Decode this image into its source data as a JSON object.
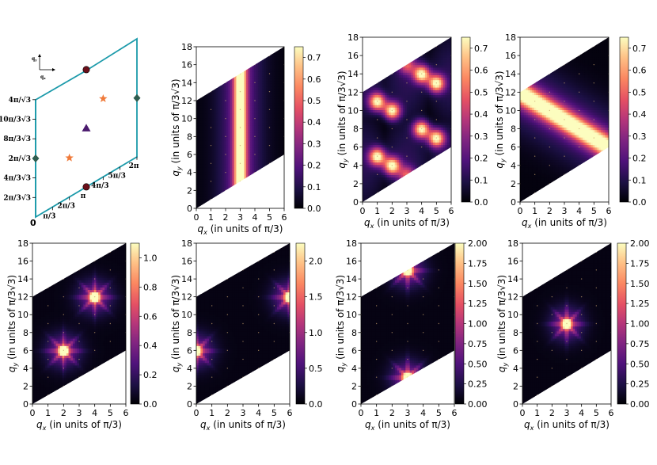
{
  "figure": {
    "axis_labels": {
      "x_text": "q",
      "x_sub": "x",
      "x_rest": " (in units of π/3)",
      "y_text": "q",
      "y_sub": "y",
      "y_rest": " (in units of π/3√3)"
    },
    "colormap": "magma",
    "colors": {
      "bz_outline": "#1b9aaa",
      "marker_circle": "#6b0f1a",
      "marker_star": "#f07a3a",
      "marker_triangle": "#4b1a6e",
      "marker_diamond": "#2f5d50"
    }
  },
  "bz_panel": {
    "origin_label": "0",
    "x_ticks": [
      "π/3",
      "2π/3",
      "π",
      "4π/3",
      "5π/3",
      "2π"
    ],
    "y_ticks": [
      "2π/3√3",
      "4π/3√3",
      "2π/√3",
      "8π/3√3",
      "10π/3√3",
      "4π/√3"
    ],
    "axis_small": {
      "qy": "q",
      "qy_sub": "y",
      "qx": "q",
      "qx_sub": "x"
    },
    "markers": [
      {
        "shape": "circle",
        "qx": 3,
        "qy": 15
      },
      {
        "shape": "circle",
        "qx": 3,
        "qy": 3
      },
      {
        "shape": "star",
        "qx": 4,
        "qy": 12
      },
      {
        "shape": "star",
        "qx": 2,
        "qy": 6
      },
      {
        "shape": "triangle",
        "qx": 3,
        "qy": 9
      },
      {
        "shape": "diamond",
        "qx": 6,
        "qy": 12
      },
      {
        "shape": "diamond",
        "qx": 0,
        "qy": 6
      }
    ]
  },
  "chart_data": [
    {
      "type": "heatmap",
      "panel": "top-1",
      "pattern": "vertical-band",
      "center": [
        3,
        9
      ],
      "xlim": [
        0,
        6
      ],
      "ylim": [
        0,
        18
      ],
      "x_ticks": [
        "0",
        "1",
        "2",
        "3",
        "4",
        "5",
        "6"
      ],
      "y_ticks": [
        "0",
        "2",
        "4",
        "6",
        "8",
        "10",
        "12",
        "14",
        "16",
        "18"
      ],
      "colorbar": {
        "min": 0,
        "max": 0.75,
        "ticks": [
          "0.0",
          "0.1",
          "0.2",
          "0.3",
          "0.4",
          "0.5",
          "0.6",
          "0.7"
        ]
      }
    },
    {
      "type": "heatmap",
      "panel": "top-2",
      "pattern": "lattice-peaks",
      "center": [
        3,
        9
      ],
      "xlim": [
        0,
        6
      ],
      "ylim": [
        0,
        18
      ],
      "x_ticks": [
        "0",
        "1",
        "2",
        "3",
        "4",
        "5",
        "6"
      ],
      "y_ticks": [
        "0",
        "2",
        "4",
        "6",
        "8",
        "10",
        "12",
        "14",
        "16",
        "18"
      ],
      "colorbar": {
        "min": 0,
        "max": 0.75,
        "ticks": [
          "0.0",
          "0.1",
          "0.2",
          "0.3",
          "0.4",
          "0.5",
          "0.6",
          "0.7"
        ]
      }
    },
    {
      "type": "heatmap",
      "panel": "top-3",
      "pattern": "diagonal-band",
      "center": [
        3,
        9
      ],
      "xlim": [
        0,
        6
      ],
      "ylim": [
        0,
        18
      ],
      "x_ticks": [
        "0",
        "1",
        "2",
        "3",
        "4",
        "5",
        "6"
      ],
      "y_ticks": [
        "0",
        "2",
        "4",
        "6",
        "8",
        "10",
        "12",
        "14",
        "16",
        "18"
      ],
      "colorbar": {
        "min": 0,
        "max": 0.75,
        "ticks": [
          "0.0",
          "0.1",
          "0.2",
          "0.3",
          "0.4",
          "0.5",
          "0.6",
          "0.7"
        ]
      }
    },
    {
      "type": "heatmap",
      "panel": "top-4",
      "pattern": "crossing-band",
      "center": [
        3,
        9
      ],
      "xlim": [
        0,
        6
      ],
      "ylim": [
        0,
        18
      ],
      "x_ticks": [
        "0",
        "1",
        "2",
        "3",
        "4",
        "5",
        "6"
      ],
      "y_ticks": [
        "0",
        "2",
        "4",
        "6",
        "8",
        "10",
        "12",
        "14",
        "16",
        "18"
      ],
      "colorbar": {
        "min": 0,
        "max": 0.75,
        "ticks": [
          "0.0",
          "0.1",
          "0.2",
          "0.3",
          "0.4",
          "0.5",
          "0.6",
          "0.7"
        ]
      }
    },
    {
      "type": "heatmap",
      "panel": "bottom-1",
      "pattern": "star-peaks",
      "peaks": [
        [
          2,
          6
        ],
        [
          4,
          12
        ]
      ],
      "xlim": [
        0,
        6
      ],
      "ylim": [
        0,
        18
      ],
      "x_ticks": [
        "0",
        "1",
        "2",
        "3",
        "4",
        "5",
        "6"
      ],
      "y_ticks": [
        "0",
        "2",
        "4",
        "6",
        "8",
        "10",
        "12",
        "14",
        "16",
        "18"
      ],
      "colorbar": {
        "min": 0,
        "max": 1.1,
        "ticks": [
          "0.0",
          "0.2",
          "0.4",
          "0.6",
          "0.8",
          "1.0"
        ]
      }
    },
    {
      "type": "heatmap",
      "panel": "bottom-2",
      "pattern": "star-peaks",
      "peaks": [
        [
          0,
          6
        ],
        [
          6,
          12
        ]
      ],
      "xlim": [
        0,
        6
      ],
      "ylim": [
        0,
        18
      ],
      "x_ticks": [
        "0",
        "1",
        "2",
        "3",
        "4",
        "5",
        "6"
      ],
      "y_ticks": [
        "0",
        "2",
        "4",
        "6",
        "8",
        "10",
        "12",
        "14",
        "16",
        "18"
      ],
      "colorbar": {
        "min": 0,
        "max": 2.25,
        "ticks": [
          "0.0",
          "0.5",
          "1.0",
          "1.5",
          "2.0"
        ]
      }
    },
    {
      "type": "heatmap",
      "panel": "bottom-3",
      "pattern": "star-peaks",
      "peaks": [
        [
          3,
          3
        ],
        [
          3,
          15
        ]
      ],
      "xlim": [
        0,
        6
      ],
      "ylim": [
        0,
        18
      ],
      "x_ticks": [
        "0",
        "1",
        "2",
        "3",
        "4",
        "5",
        "6"
      ],
      "y_ticks": [
        "0",
        "2",
        "4",
        "6",
        "8",
        "10",
        "12",
        "14",
        "16",
        "18"
      ],
      "colorbar": {
        "min": 0,
        "max": 2.0,
        "ticks": [
          "0.00",
          "0.25",
          "0.50",
          "0.75",
          "1.00",
          "1.25",
          "1.50",
          "1.75",
          "2.00"
        ]
      }
    },
    {
      "type": "heatmap",
      "panel": "bottom-4",
      "pattern": "star-peaks",
      "peaks": [
        [
          3,
          9
        ]
      ],
      "xlim": [
        0,
        6
      ],
      "ylim": [
        0,
        18
      ],
      "x_ticks": [
        "0",
        "1",
        "2",
        "3",
        "4",
        "5",
        "6"
      ],
      "y_ticks": [
        "0",
        "2",
        "4",
        "6",
        "8",
        "10",
        "12",
        "14",
        "16",
        "18"
      ],
      "colorbar": {
        "min": 0,
        "max": 2.0,
        "ticks": [
          "0.00",
          "0.25",
          "0.50",
          "0.75",
          "1.00",
          "1.25",
          "1.50",
          "1.75",
          "2.00"
        ]
      }
    }
  ]
}
